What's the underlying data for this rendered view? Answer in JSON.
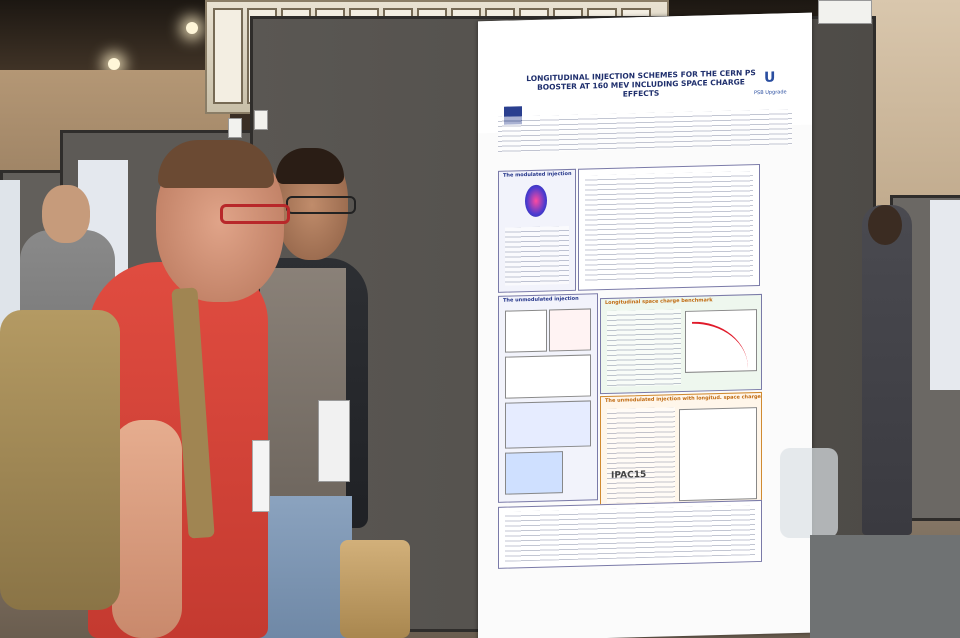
{
  "scene": {
    "description_visible_text": true
  },
  "poster": {
    "title_line1": "LONGITUDINAL INJECTION SCHEMES FOR THE CERN PS",
    "title_line2": "BOOSTER AT 160 MEV INCLUDING SPACE CHARGE EFFECTS",
    "sections": [
      {
        "title": "The modulated injection"
      },
      {
        "title": "The unmodulated injection"
      },
      {
        "title": "Longitudinal space charge benchmark"
      },
      {
        "title": "The unmodulated injection with longitud. space charge"
      }
    ],
    "conference_logo": "IPAC15",
    "upgrade_logo": "PSB Upgrade"
  },
  "colors": {
    "accent_blue": "#1f2f6d",
    "accent_orange": "#c06a10"
  }
}
